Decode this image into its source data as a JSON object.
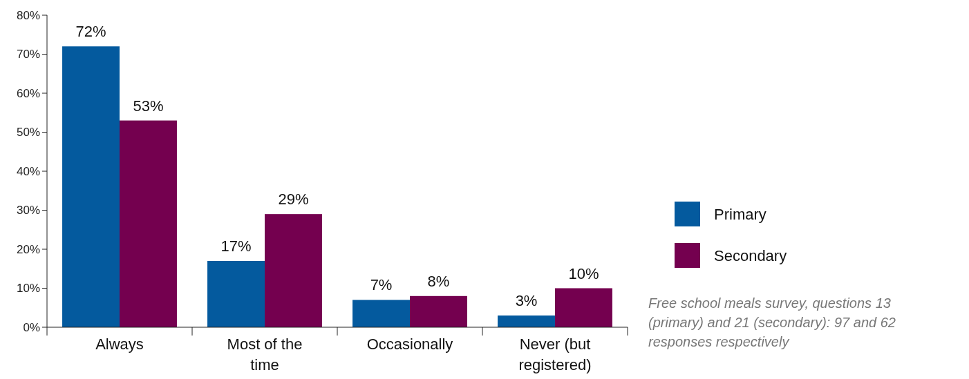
{
  "chart_data": {
    "type": "bar",
    "categories": [
      "Always",
      "Most of the time",
      "Occasionally",
      "Never (but registered)"
    ],
    "series": [
      {
        "name": "Primary",
        "color": "#045a9e",
        "values": [
          72,
          17,
          7,
          3
        ],
        "value_labels": [
          "72%",
          "17%",
          "7%",
          "3%"
        ]
      },
      {
        "name": "Secondary",
        "color": "#74004f",
        "values": [
          53,
          29,
          8,
          10
        ],
        "value_labels": [
          "53%",
          "29%",
          "8%",
          "10%"
        ]
      }
    ],
    "ylim": [
      0,
      80
    ],
    "yticks": [
      {
        "value": 0,
        "label": "0%"
      },
      {
        "value": 10,
        "label": "10%"
      },
      {
        "value": 20,
        "label": "20%"
      },
      {
        "value": 30,
        "label": "30%"
      },
      {
        "value": 40,
        "label": "40%"
      },
      {
        "value": 50,
        "label": "50%"
      },
      {
        "value": 60,
        "label": "60%"
      },
      {
        "value": 70,
        "label": "70%"
      },
      {
        "value": 80,
        "label": "80%"
      }
    ],
    "legend": "right",
    "grid": false,
    "annotations": [
      "Free school meals survey, questions 13 (primary) and 21 (secondary): 97 and 62 responses respectively"
    ]
  }
}
